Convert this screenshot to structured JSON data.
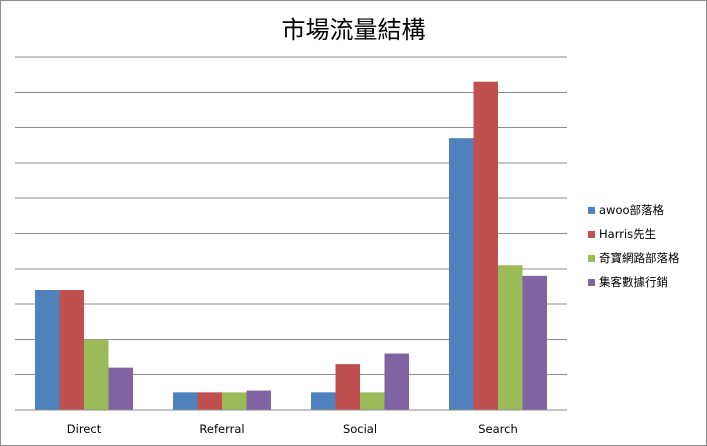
{
  "chart_data": {
    "type": "bar",
    "title": "市場流量結構",
    "categories": [
      "Direct",
      "Referral",
      "Social",
      "Search"
    ],
    "series": [
      {
        "name": "awoo部落格",
        "color": "#4f81bd",
        "values": [
          34,
          5,
          5,
          77
        ]
      },
      {
        "name": "Harris先生",
        "color": "#c0504d",
        "values": [
          34,
          5,
          13,
          93
        ]
      },
      {
        "name": "奇寶網路部落格",
        "color": "#9bbb59",
        "values": [
          20,
          5,
          5,
          41
        ]
      },
      {
        "name": "集客數據行銷",
        "color": "#8064a2",
        "values": [
          12,
          5.5,
          16,
          38
        ]
      }
    ],
    "ylim": [
      0,
      100
    ],
    "ytick_step": 10,
    "y_tick_labels_shown": false,
    "grid": true,
    "legend_position": "right",
    "xlabel": "",
    "ylabel": ""
  }
}
